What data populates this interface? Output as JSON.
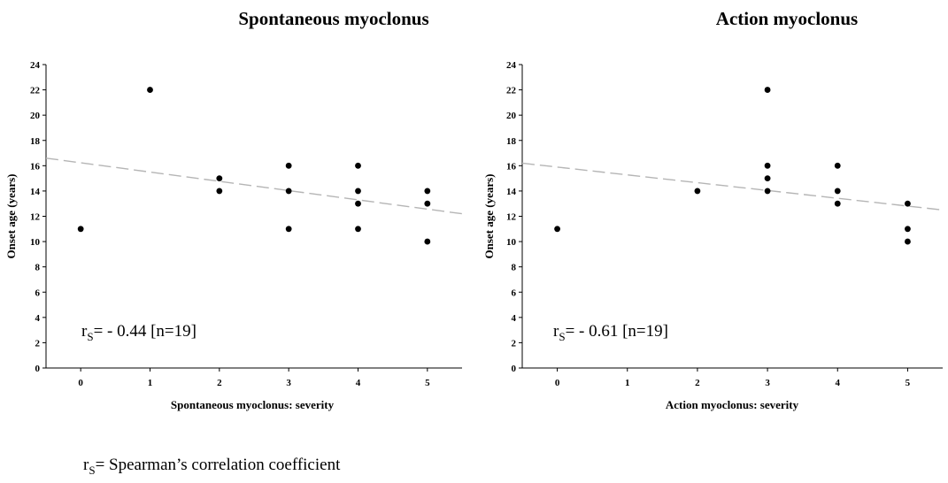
{
  "chart_data": [
    {
      "type": "scatter",
      "title": "Spontaneous myoclonus",
      "xlabel": "Spontaneous myoclonus: severity",
      "ylabel": "Onset age (years)",
      "xlim": [
        -0.5,
        5.5
      ],
      "ylim": [
        0,
        24
      ],
      "xticks": [
        "0",
        "1",
        "2",
        "3",
        "4",
        "5"
      ],
      "yticks": [
        "0",
        "2",
        "4",
        "6",
        "8",
        "10",
        "12",
        "14",
        "16",
        "18",
        "20",
        "22",
        "24"
      ],
      "points": [
        {
          "x": 0,
          "y": 11
        },
        {
          "x": 1,
          "y": 22
        },
        {
          "x": 2,
          "y": 15
        },
        {
          "x": 2,
          "y": 14
        },
        {
          "x": 3,
          "y": 16
        },
        {
          "x": 3,
          "y": 14
        },
        {
          "x": 3,
          "y": 11
        },
        {
          "x": 4,
          "y": 16
        },
        {
          "x": 4,
          "y": 14
        },
        {
          "x": 4,
          "y": 13
        },
        {
          "x": 4,
          "y": 11
        },
        {
          "x": 5,
          "y": 14
        },
        {
          "x": 5,
          "y": 13
        },
        {
          "x": 5,
          "y": 10
        }
      ],
      "trend_line": {
        "x": [
          -0.5,
          5.5
        ],
        "y": [
          16.6,
          12.2
        ],
        "style": "dashed",
        "color": "#b5b5b5"
      },
      "annotation": {
        "symbol": "r",
        "subscript": "S",
        "text": "= - 0.44 [n=19]"
      },
      "grid": false
    },
    {
      "type": "scatter",
      "title": "Action myoclonus",
      "xlabel": "Action myoclonus: severity",
      "ylabel": "Onset age (years)",
      "xlim": [
        -0.5,
        5.5
      ],
      "ylim": [
        0,
        24
      ],
      "xticks": [
        "0",
        "1",
        "2",
        "3",
        "4",
        "5"
      ],
      "yticks": [
        "0",
        "2",
        "4",
        "6",
        "8",
        "10",
        "12",
        "14",
        "16",
        "18",
        "20",
        "22",
        "24"
      ],
      "points": [
        {
          "x": 0,
          "y": 11
        },
        {
          "x": 2,
          "y": 14
        },
        {
          "x": 3,
          "y": 22
        },
        {
          "x": 3,
          "y": 16
        },
        {
          "x": 3,
          "y": 15
        },
        {
          "x": 3,
          "y": 14
        },
        {
          "x": 4,
          "y": 16
        },
        {
          "x": 4,
          "y": 14
        },
        {
          "x": 4,
          "y": 13
        },
        {
          "x": 5,
          "y": 13
        },
        {
          "x": 5,
          "y": 11
        },
        {
          "x": 5,
          "y": 10
        }
      ],
      "trend_line": {
        "x": [
          -0.5,
          5.5
        ],
        "y": [
          16.2,
          12.5
        ],
        "style": "dashed",
        "color": "#b5b5b5"
      },
      "annotation": {
        "symbol": "r",
        "subscript": "S",
        "text": "= - 0.61 [n=19]"
      },
      "grid": false
    }
  ],
  "footnote": {
    "symbol": "r",
    "subscript": "S",
    "text": "= Spearman’s correlation coefficient"
  }
}
